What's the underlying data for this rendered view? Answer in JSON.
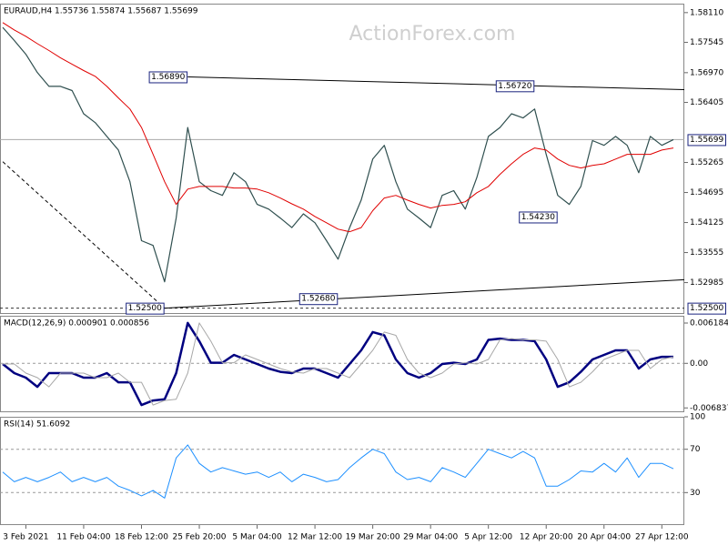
{
  "chart_data": [
    {
      "type": "line",
      "title": "EURAUD,H4  1.55736 1.55874 1.55687 1.55699",
      "watermark": "ActionForex.com",
      "ylim": [
        1.5239,
        1.5828
      ],
      "yticks": [
        {
          "value": 1.5811,
          "label": "1.58110"
        },
        1.57545,
        {
          "value": 1.5697,
          "label": "1.56970"
        },
        1.56405,
        1.55265,
        1.54695,
        1.54125,
        1.53555,
        1.52985
      ],
      "series": [
        {
          "color": "#2f4f4f",
          "width": 1.2,
          "values": [
            1.5783,
            1.5758,
            1.5732,
            1.5697,
            1.5671,
            1.5671,
            1.5663,
            1.5619,
            1.5602,
            1.5576,
            1.555,
            1.549,
            1.5378,
            1.5369,
            1.53,
            1.5421,
            1.5593,
            1.549,
            1.5473,
            1.5464,
            1.5507,
            1.549,
            1.5447,
            1.5438,
            1.5421,
            1.5403,
            1.5429,
            1.5412,
            1.5378,
            1.5343,
            1.5403,
            1.5455,
            1.5533,
            1.5559,
            1.549,
            1.5438,
            1.5421,
            1.5403,
            1.5464,
            1.5473,
            1.5438,
            1.5498,
            1.5576,
            1.5593,
            1.5619,
            1.5611,
            1.5628,
            1.5542,
            1.5464,
            1.5447,
            1.5481,
            1.5568,
            1.5559,
            1.5576,
            1.5559,
            1.5507,
            1.5576,
            1.5559,
            1.557
          ]
        },
        {
          "color": "#e00000",
          "width": 1,
          "values": [
            1.5792,
            1.5778,
            1.5766,
            1.5752,
            1.5739,
            1.5725,
            1.5713,
            1.5701,
            1.569,
            1.5671,
            1.5649,
            1.5628,
            1.5593,
            1.5542,
            1.549,
            1.5447,
            1.5476,
            1.5481,
            1.5481,
            1.5481,
            1.5478,
            1.5478,
            1.5476,
            1.5469,
            1.5459,
            1.5448,
            1.5438,
            1.5424,
            1.5412,
            1.54,
            1.5395,
            1.5403,
            1.5435,
            1.5459,
            1.5464,
            1.5455,
            1.5447,
            1.544,
            1.5445,
            1.5447,
            1.5452,
            1.5469,
            1.5481,
            1.5504,
            1.5524,
            1.5542,
            1.5554,
            1.555,
            1.5533,
            1.5521,
            1.5516,
            1.5521,
            1.5524,
            1.5533,
            1.5542,
            1.5542,
            1.5542,
            1.555,
            1.5554
          ]
        }
      ],
      "annotations": [
        {
          "x": 16,
          "value": 1.5689,
          "label": "1.56890"
        },
        {
          "x": 46,
          "value": 1.5672,
          "label": "1.56720"
        },
        {
          "x": 48,
          "value": 1.5423,
          "label": "1.54230"
        },
        {
          "x": 14,
          "value": 1.525,
          "label": "1.52500"
        },
        {
          "x": 29,
          "value": 1.5268,
          "label": "1.52680"
        }
      ],
      "trendlines": [
        {
          "points": [
            [
              16,
              1.5689
            ],
            [
              46,
              1.5672
            ]
          ],
          "extend": true,
          "dash": false
        },
        {
          "points": [
            [
              14,
              1.525
            ],
            [
              29,
              1.5268
            ]
          ],
          "extend": true,
          "dash": false
        },
        {
          "points": [
            [
              0,
              1.5528
            ],
            [
              14,
              1.525
            ]
          ],
          "extend": false,
          "dash": true
        }
      ],
      "hline": {
        "value": 1.525,
        "label": "1.52500"
      },
      "last_price": {
        "value": 1.55699,
        "label": "1.55699"
      }
    },
    {
      "type": "line",
      "title": "MACD(12,26,9) 0.000901 0.000856",
      "ylim": [
        -0.0075,
        0.0073
      ],
      "yticks": [
        0.006184,
        {
          "value": 0,
          "label": "0.00"
        },
        -0.006837
      ],
      "grid_lines": [
        0
      ],
      "series": [
        {
          "color": "#000080",
          "width": 2.5,
          "values": [
            -0.0001,
            -0.0015,
            -0.0022,
            -0.0036,
            -0.0015,
            -0.0015,
            -0.0015,
            -0.0022,
            -0.0022,
            -0.0015,
            -0.0029,
            -0.0029,
            -0.0064,
            -0.0057,
            -0.0055,
            -0.0015,
            0.0062,
            0.0034,
            0.0001,
            0.0001,
            0.0013,
            0.0006,
            -0.0001,
            -0.0008,
            -0.0013,
            -0.0015,
            -0.0008,
            -0.0008,
            -0.0015,
            -0.0022,
            -0.0001,
            0.002,
            0.0048,
            0.0043,
            0.0006,
            -0.0015,
            -0.0022,
            -0.0015,
            -0.0001,
            0.0001,
            -0.0001,
            0.0006,
            0.0036,
            0.0038,
            0.0036,
            0.0036,
            0.0034,
            0.0006,
            -0.0036,
            -0.0029,
            -0.0013,
            0.0006,
            0.0013,
            0.002,
            0.002,
            -0.0008,
            0.0006,
            0.001,
            0.001
          ]
        },
        {
          "color": "#a8a8a8",
          "width": 1,
          "values": [
            -0.0001,
            -0.0001,
            -0.0015,
            -0.0022,
            -0.0036,
            -0.0015,
            -0.0015,
            -0.0015,
            -0.0022,
            -0.0022,
            -0.0015,
            -0.0029,
            -0.0029,
            -0.0064,
            -0.0057,
            -0.0055,
            -0.0015,
            0.0062,
            0.0034,
            0.0001,
            0.0001,
            0.0013,
            0.0006,
            -0.0001,
            -0.0008,
            -0.0013,
            -0.0015,
            -0.0008,
            -0.0008,
            -0.0015,
            -0.0022,
            -0.0001,
            0.002,
            0.0048,
            0.0043,
            0.0006,
            -0.0015,
            -0.0022,
            -0.0015,
            -0.0001,
            0.0001,
            -0.0001,
            0.0006,
            0.0036,
            0.0038,
            0.0036,
            0.0036,
            0.0034,
            0.0006,
            -0.0036,
            -0.0029,
            -0.0013,
            0.0006,
            0.0013,
            0.002,
            0.002,
            -0.0008,
            0.0006,
            0.001
          ]
        }
      ]
    },
    {
      "type": "line",
      "title": "RSI(14) 51.6092",
      "ylim": [
        0,
        100
      ],
      "yticks": [
        100,
        70,
        30
      ],
      "grid_lines": [
        70,
        30
      ],
      "categories": [
        null,
        null,
        "3 Feb 2021",
        null,
        null,
        null,
        null,
        "11 Feb 04:00",
        null,
        null,
        null,
        null,
        "18 Feb 12:00",
        null,
        null,
        null,
        null,
        "25 Feb 20:00",
        null,
        null,
        null,
        null,
        "5 Mar 04:00",
        null,
        null,
        null,
        null,
        "12 Mar 12:00",
        null,
        null,
        null,
        null,
        "19 Mar 20:00",
        null,
        null,
        null,
        null,
        "29 Mar 04:00",
        null,
        null,
        null,
        null,
        "5 Apr 12:00",
        null,
        null,
        null,
        null,
        "12 Apr 20:00",
        null,
        null,
        null,
        null,
        "20 Apr 04:00",
        null,
        null,
        null,
        null,
        "27 Apr 12:00",
        null
      ],
      "series": [
        {
          "color": "#1e90ff",
          "width": 1,
          "values": [
            49,
            40,
            44,
            40,
            44,
            49,
            40,
            44,
            40,
            44,
            36,
            32,
            27,
            32,
            25,
            62,
            74,
            57,
            49,
            53,
            50,
            47,
            49,
            44,
            49,
            40,
            47,
            44,
            40,
            42,
            53,
            62,
            70,
            66,
            49,
            42,
            44,
            40,
            53,
            49,
            44,
            57,
            70,
            66,
            62,
            68,
            62,
            36,
            36,
            42,
            50,
            49,
            57,
            49,
            62,
            44,
            57,
            57,
            52
          ]
        }
      ]
    }
  ]
}
